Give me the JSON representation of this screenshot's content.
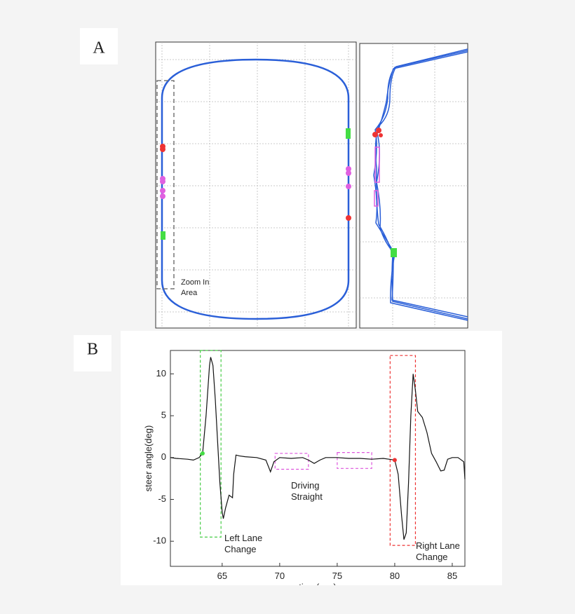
{
  "panel_a": {
    "label": "A",
    "annotation": "Zoom In Area"
  },
  "panel_b": {
    "label": "B"
  },
  "chart_data": {
    "type": "line",
    "xlabel": "time(sec)",
    "ylabel": "steer angle(deg)",
    "x": [
      60.5,
      61,
      62,
      62.5,
      63,
      63.3,
      63.6,
      63.9,
      64.0,
      64.2,
      64.4,
      64.6,
      64.8,
      65.0,
      65.1,
      65.3,
      65.6,
      65.9,
      66.0,
      66.2,
      66.5,
      67,
      68,
      68.8,
      69.2,
      69.5,
      70,
      71,
      72,
      72.5,
      73,
      73.5,
      74,
      75,
      76,
      77,
      78,
      79,
      79.5,
      80,
      80.3,
      80.6,
      80.8,
      81.0,
      81.2,
      81.4,
      81.6,
      81.8,
      82,
      82.4,
      82.8,
      83.2,
      83.6,
      84,
      84.3,
      84.6,
      85,
      85.5,
      86,
      86.1
    ],
    "values": [
      0,
      -0.1,
      -0.2,
      -0.3,
      0,
      0.5,
      5,
      11,
      12,
      11,
      7,
      2,
      -3,
      -6.5,
      -7.3,
      -6,
      -4.5,
      -4.8,
      -2,
      0.3,
      0.2,
      0.1,
      0,
      -0.3,
      -1.7,
      -0.5,
      0,
      -0.1,
      0,
      -0.3,
      -0.7,
      -0.3,
      0,
      0,
      -0.1,
      -0.1,
      -0.2,
      -0.1,
      -0.2,
      -0.3,
      -2,
      -7,
      -9.8,
      -9,
      -3,
      5,
      10,
      8,
      5.5,
      4.8,
      3,
      0.5,
      -0.5,
      -1.6,
      -1.5,
      -0.2,
      0,
      0,
      -0.5,
      -2.6
    ],
    "color": "#111111",
    "points": [
      {
        "x": 63.3,
        "y": 0.5,
        "color": "#44dd44"
      },
      {
        "x": 80.0,
        "y": -0.3,
        "color": "#ee3333"
      }
    ],
    "regions": [
      {
        "x": [
          63.1,
          64.9
        ],
        "y": [
          -9.5,
          12.8
        ],
        "color": "#44cc44"
      },
      {
        "x": [
          69.6,
          72.5
        ],
        "y": [
          -1.4,
          0.5
        ],
        "color": "#dd55dd"
      },
      {
        "x": [
          75.0,
          78.0
        ],
        "y": [
          -1.3,
          0.6
        ],
        "color": "#dd55dd"
      },
      {
        "x": [
          79.6,
          81.8
        ],
        "y": [
          -10.5,
          12.2
        ],
        "color": "#ee3333"
      }
    ],
    "annotations": [
      "Left Lane\nChange",
      "Driving\nStraight",
      "Right Lane\nChange"
    ],
    "xlim": [
      60.5,
      86.1
    ],
    "ylim": [
      -13,
      12.8
    ],
    "xticks": [
      65,
      70,
      75,
      80,
      85
    ],
    "yticks": [
      10,
      5,
      0,
      -5,
      -10
    ]
  }
}
